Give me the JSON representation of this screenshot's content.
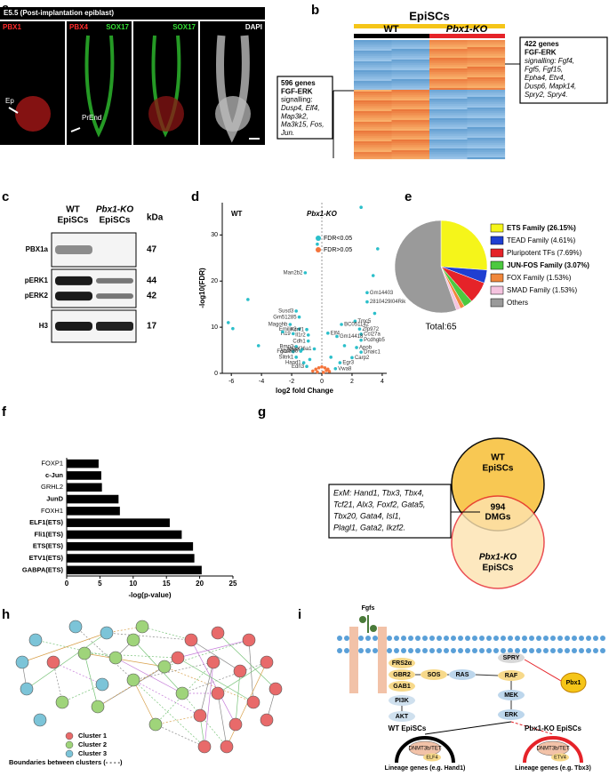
{
  "panel_letters": [
    "a",
    "b",
    "c",
    "d",
    "e",
    "f",
    "g",
    "h",
    "i"
  ],
  "panel_a": {
    "title": "E5.5 (Post-implantation epiblast)",
    "channels": [
      [
        {
          "text": "PBX1",
          "color": "#ff2a2a"
        }
      ],
      [
        {
          "text": "PBX4",
          "color": "#ff2a2a"
        },
        {
          "text": "SOX17",
          "color": "#33dd33"
        }
      ],
      [
        {
          "text": "SOX17",
          "color": "#33dd33"
        }
      ],
      [
        {
          "text": "DAPI",
          "color": "#ffffff"
        }
      ]
    ],
    "arrows": [
      "Ep",
      "PrEnd"
    ]
  },
  "panel_b": {
    "title": "EpiSCs",
    "groups": [
      "WT",
      "Pbx1-KO"
    ],
    "box_right": [
      "422 genes",
      "FGF-ERK",
      "signalling: Fgf4,",
      "Fgf5, Fgf15,",
      "Epha4, Etv4,",
      "Dusp6, Mapk14,",
      "Spry2, Spry4."
    ],
    "box_left": [
      "596 genes",
      "FGF-ERK",
      "signalling:",
      "Dusp4, Elf4,",
      "Map3k2,",
      "Ma3k15, Fos,",
      "Jun."
    ]
  },
  "panel_c": {
    "columns": [
      [
        "WT",
        "EpiSCs"
      ],
      [
        "Pbx1-KO",
        "EpiSCs"
      ]
    ],
    "unit": "kDa",
    "rows": [
      {
        "labels": [
          "PBX1a"
        ],
        "kda": [
          47
        ]
      },
      {
        "labels": [
          "pERK1",
          "pERK2"
        ],
        "kda": [
          44,
          42
        ]
      },
      {
        "labels": [
          "H3"
        ],
        "kda": [
          17
        ]
      }
    ]
  },
  "panel_g": {
    "top": [
      "WT",
      "EpiSCs"
    ],
    "bottom": [
      "Pbx1-KO",
      "EpiSCs"
    ],
    "overlap": [
      994,
      "DMGs"
    ],
    "box": [
      "ExM: Hand1, Tbx3, Tbx4,",
      "Tcf21, Alx3, Foxf2, Gata5,",
      "Tbx20, Gata4, Isl1,",
      "Plagl1, Gata2, Ikzf2."
    ]
  },
  "panel_h": {
    "legend": [
      {
        "text": "Cluster 1",
        "color": "#e86a6a"
      },
      {
        "text": "Cluster 2",
        "color": "#9fd47a"
      },
      {
        "text": "Cluster 3",
        "color": "#7cc4d8"
      },
      {
        "text": "Boundaries between clusters (- - - -)",
        "color": null
      }
    ]
  },
  "panel_i": {
    "nodes": [
      "Fgfs",
      "FRS2α",
      "GBR2",
      "GAB1",
      "PI3K",
      "AKT",
      "SOS",
      "RAS",
      "SPRY",
      "RAF",
      "MEK",
      "ERK",
      "Pbx1"
    ],
    "outcomes": [
      {
        "title": "WT EpiSCs",
        "complex": "DNMT3b/TET",
        "tf": "ELF4",
        "genes": "Lineage genes (e.g. Hand1)"
      },
      {
        "title": "Pbx1-KO  EpiSCs",
        "complex": "DNMT3b/TET",
        "tf": "ETV4",
        "genes": "Lineage genes (e.g. Tbx3)"
      }
    ]
  },
  "chart_data": [
    {
      "type": "scatter",
      "xlabel": "log2 fold Change",
      "ylabel": "-log10(FDR)",
      "group_labels": [
        "WT",
        "Pbx1-KO"
      ],
      "xlim": [
        -6.6,
        4.3
      ],
      "ylim": [
        0,
        37
      ],
      "xticks": [
        -6,
        -4,
        -2,
        0,
        2,
        4
      ],
      "yticks": [
        0,
        10,
        20,
        30
      ],
      "series": [
        {
          "name": "FDR<0.05",
          "color": "#2bbfca",
          "x": [
            -1.1,
            3.4,
            2.6,
            3.0,
            3.0,
            -1.7,
            -1.5,
            -2.1,
            -1.5,
            -1.9,
            -1.0,
            -0.9,
            -0.9,
            -1.7,
            -1.3,
            -0.5,
            -1.9,
            -1.4,
            -1.7,
            -1.2,
            -1.0,
            0.4,
            2.2,
            2.5,
            1.3,
            2.6,
            1.0,
            2.6,
            2.3,
            2.6,
            2.0,
            1.2,
            0.9,
            -6.2,
            -5.9,
            -4.9,
            -4.2,
            3.7,
            -0.3,
            -2.6,
            1.5,
            -0.8,
            0.6,
            3.5
          ],
          "values": [
            21.8,
            21.2,
            36,
            17.5,
            15.5,
            13.5,
            12.2,
            10.6,
            9.6,
            8.6,
            9.5,
            8.3,
            7.0,
            5.8,
            5.2,
            5.3,
            4.7,
            4.8,
            3.5,
            2.3,
            1.5,
            8.7,
            11.3,
            9.6,
            10.6,
            8.5,
            8.0,
            7.2,
            5.6,
            4.6,
            3.4,
            2.3,
            1.0,
            11,
            9.7,
            16,
            6,
            27,
            28,
            9,
            6,
            3,
            3.5,
            13
          ],
          "labels": [
            "Man2b2",
            null,
            null,
            "Gm14403",
            "2810429I04Rik",
            "Susd3",
            "Gm51285",
            "Magohb",
            "Emilin3",
            "H19",
            "Kcnf1",
            "Il1r2",
            "Cdh1",
            "Bmp2",
            "Npas",
            "Col26a1",
            "Fgf14",
            "Abca8b",
            "Slitrk1",
            "Hand1",
            "Edn3",
            "Elf4",
            "Tmc5",
            "Zfp972",
            "BC051142",
            "Ccl27a",
            "Gm14418",
            "Pcdhgb5",
            "Apob",
            "Dnaic1",
            "Carp2",
            "Egr3",
            "Vwa8",
            null,
            null,
            null,
            null,
            null,
            null,
            null,
            null,
            null,
            null,
            null
          ]
        },
        {
          "name": "FDR>0.05",
          "color": "#f4743b",
          "x": [
            -0.6,
            -0.4,
            -0.2,
            0,
            0.2,
            0.4,
            0.5,
            -0.3,
            0.1,
            0.3
          ],
          "values": [
            0.5,
            0.9,
            1.2,
            1.4,
            1.2,
            0.9,
            0.4,
            0.3,
            0.2,
            0.6
          ]
        }
      ]
    },
    {
      "type": "pie",
      "total": "Total:65",
      "categories": [
        "ETS Family (26.15%)",
        "TEAD Family (4.61%)",
        "Pluripotent TFs (7.69%)",
        "JUN-FOS Family (3.07%)",
        "FOX Family (1.53%)",
        "SMAD Family (1.53%)",
        "Others"
      ],
      "values": [
        26.15,
        4.61,
        7.69,
        3.07,
        1.53,
        1.53,
        55.42
      ],
      "colors": [
        "#f5f51a",
        "#1f3fd1",
        "#e52329",
        "#4cc93f",
        "#f0873c",
        "#f5c3df",
        "#9a9a9a"
      ],
      "bold": [
        true,
        false,
        false,
        true,
        false,
        false,
        false
      ]
    },
    {
      "type": "barh",
      "xlabel": "-log(p-value)",
      "categories": [
        "FOXP1",
        "c-Jun",
        "GRHL2",
        "JunD",
        "FOXH1",
        "ELF1(ETS)",
        "Fli1(ETS)",
        "ETS(ETS)",
        "ETV1(ETS)",
        "GABPA(ETS)"
      ],
      "values": [
        4.8,
        5.2,
        5.3,
        7.8,
        8.0,
        15.5,
        17.3,
        19.0,
        19.2,
        20.3
      ],
      "bold": [
        false,
        true,
        false,
        true,
        false,
        true,
        true,
        true,
        true,
        true
      ],
      "color": "#000000",
      "xlim": [
        0,
        25
      ],
      "xticks": [
        0,
        5,
        10,
        15,
        20,
        25
      ]
    }
  ]
}
